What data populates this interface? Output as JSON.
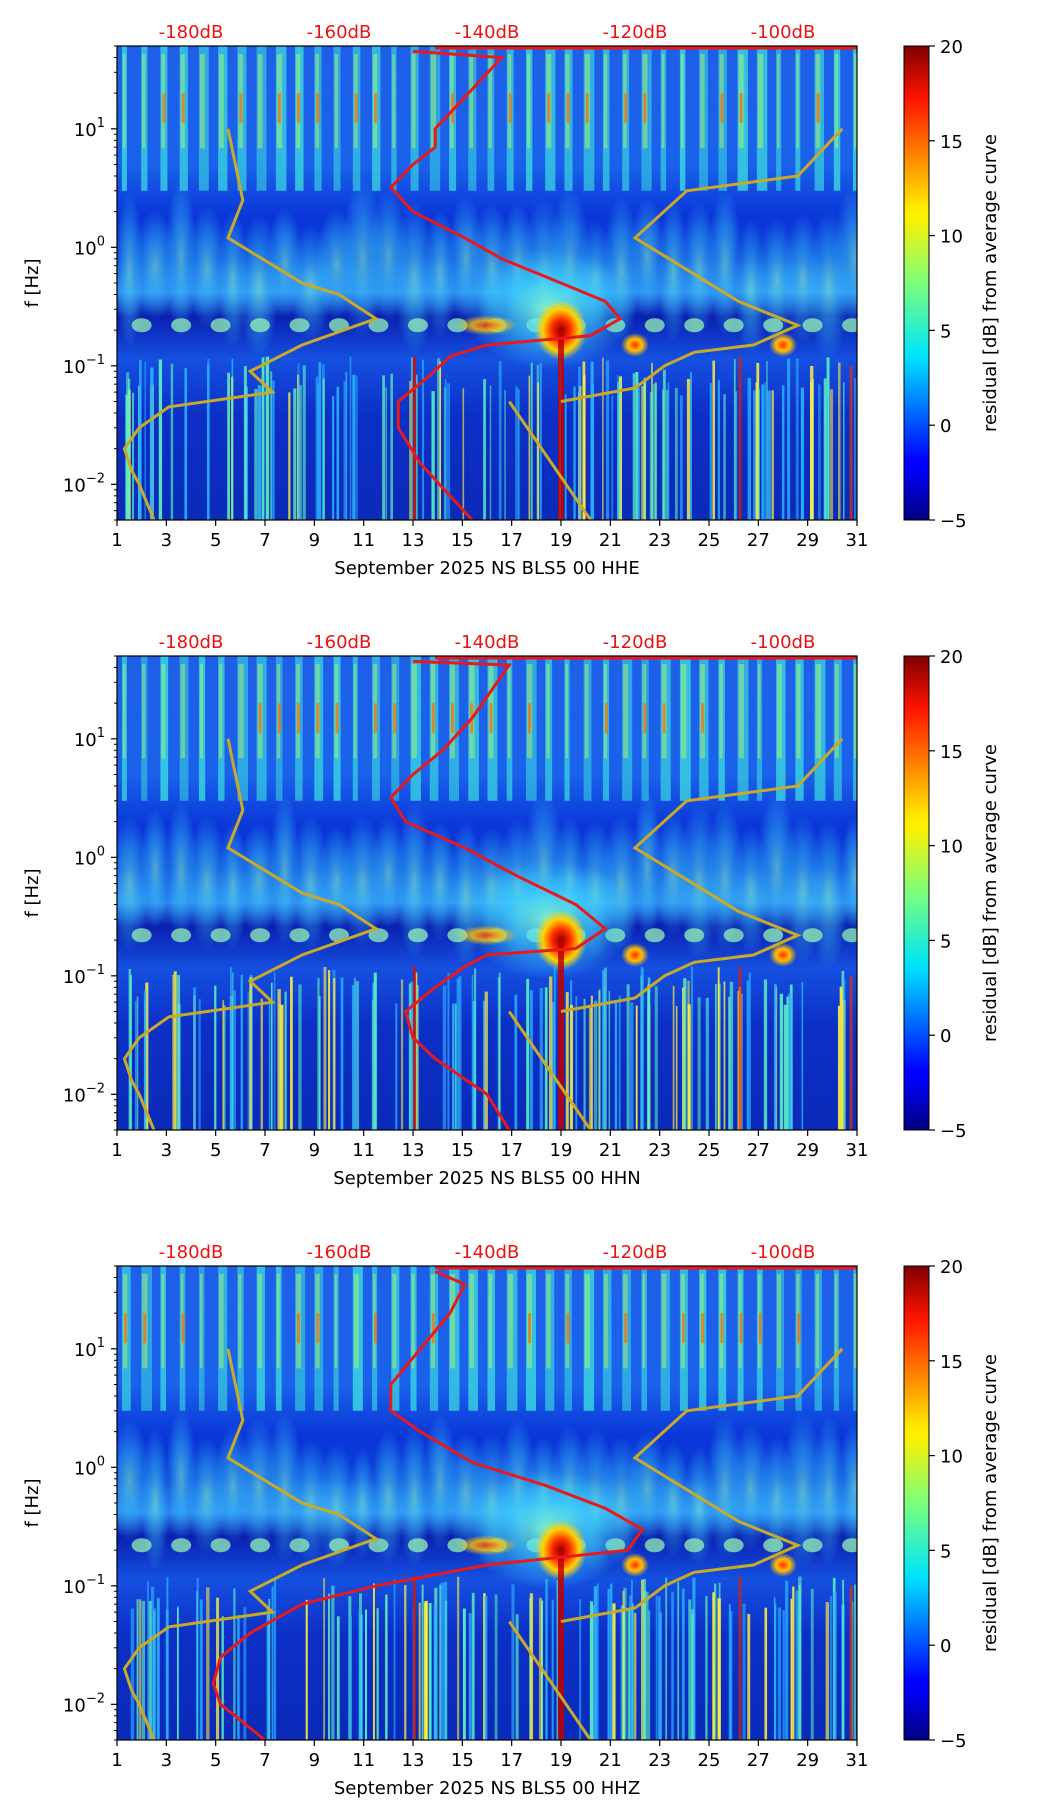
{
  "colors": {
    "red_curve": "#e8191c",
    "mustard_curve": "#c9a92a",
    "db_labels": "#ee1111",
    "axis": "#000000"
  },
  "colorbar": {
    "label": "residual [dB] from average curve",
    "ticks": [
      "20",
      "15",
      "10",
      "5",
      "0",
      "−5"
    ],
    "range": [
      -5,
      20
    ],
    "colormap": "jet"
  },
  "chart_data": [
    {
      "type": "heatmap",
      "title": "",
      "xlabel": "September 2025 NS BLS5 00 HHE",
      "ylabel": "f [Hz]",
      "x_ticks": [
        "1",
        "3",
        "5",
        "7",
        "9",
        "11",
        "13",
        "15",
        "17",
        "19",
        "21",
        "23",
        "25",
        "27",
        "29",
        "31"
      ],
      "y_ticks": [
        {
          "exp": "1"
        },
        {
          "exp": "0"
        },
        {
          "exp": "−1"
        },
        {
          "exp": "−2"
        }
      ],
      "y_base": "10",
      "db_labels": [
        "-180dB",
        "-160dB",
        "-140dB",
        "-120dB",
        "-100dB"
      ],
      "xlim": [
        1,
        31
      ],
      "ylim_hz": [
        0.005,
        50
      ],
      "db_range": [
        -190,
        -90
      ],
      "red_curve": [
        [
          -150,
          45
        ],
        [
          -138,
          40
        ],
        [
          -147,
          10
        ],
        [
          -147,
          7
        ],
        [
          -150,
          5
        ],
        [
          -153,
          3.2
        ],
        [
          -150,
          2
        ],
        [
          -143,
          1.2
        ],
        [
          -138,
          0.8
        ],
        [
          -130,
          0.5
        ],
        [
          -124,
          0.35
        ],
        [
          -122,
          0.25
        ],
        [
          -126,
          0.18
        ],
        [
          -140,
          0.15
        ],
        [
          -145,
          0.12
        ],
        [
          -148,
          0.08
        ],
        [
          -152,
          0.05
        ],
        [
          -152,
          0.03
        ],
        [
          -149,
          0.015
        ],
        [
          -142,
          0.005
        ]
      ],
      "mustard_curve": [
        [
          -175,
          10
        ],
        [
          -173,
          2.5
        ],
        [
          -175,
          1.2
        ],
        [
          -165,
          0.5
        ],
        [
          -160,
          0.4
        ],
        [
          -155,
          0.25
        ],
        [
          -165,
          0.15
        ],
        [
          -172,
          0.09
        ],
        [
          -169,
          0.06
        ],
        [
          -183,
          0.045
        ],
        [
          -187,
          0.03
        ],
        [
          -189,
          0.02
        ],
        [
          -188,
          0.013
        ],
        [
          -187,
          0.01
        ],
        [
          -185,
          0.005
        ]
      ],
      "mustard_branch": [
        [
          -130,
          0.05
        ],
        [
          -120,
          0.065
        ],
        [
          -116,
          0.1
        ],
        [
          -112,
          0.13
        ],
        [
          -104,
          0.15
        ],
        [
          -98,
          0.22
        ],
        [
          -106,
          0.35
        ],
        [
          -120,
          1.2
        ],
        [
          -113,
          3
        ],
        [
          -98,
          4
        ],
        [
          -92,
          10
        ]
      ],
      "mustard_diag": [
        [
          -137,
          0.05
        ],
        [
          -126,
          0.005
        ]
      ],
      "events_days": [
        19,
        22,
        28
      ]
    },
    {
      "type": "heatmap",
      "title": "",
      "xlabel": "September 2025 NS BLS5 00 HHN",
      "ylabel": "f [Hz]",
      "x_ticks": [
        "1",
        "3",
        "5",
        "7",
        "9",
        "11",
        "13",
        "15",
        "17",
        "19",
        "21",
        "23",
        "25",
        "27",
        "29",
        "31"
      ],
      "y_ticks": [
        {
          "exp": "1"
        },
        {
          "exp": "0"
        },
        {
          "exp": "−1"
        },
        {
          "exp": "−2"
        }
      ],
      "y_base": "10",
      "db_labels": [
        "-180dB",
        "-160dB",
        "-140dB",
        "-120dB",
        "-100dB"
      ],
      "xlim": [
        1,
        31
      ],
      "ylim_hz": [
        0.005,
        50
      ],
      "db_range": [
        -190,
        -90
      ],
      "red_curve": [
        [
          -150,
          45
        ],
        [
          -137,
          42
        ],
        [
          -142,
          15
        ],
        [
          -146,
          8
        ],
        [
          -150,
          5
        ],
        [
          -153,
          3.2
        ],
        [
          -151,
          2
        ],
        [
          -143,
          1.2
        ],
        [
          -136,
          0.7
        ],
        [
          -128,
          0.4
        ],
        [
          -124,
          0.25
        ],
        [
          -128,
          0.17
        ],
        [
          -140,
          0.15
        ],
        [
          -143,
          0.12
        ],
        [
          -147,
          0.08
        ],
        [
          -151,
          0.05
        ],
        [
          -150,
          0.03
        ],
        [
          -147,
          0.02
        ],
        [
          -140,
          0.01
        ],
        [
          -137,
          0.005
        ]
      ],
      "mustard_curve": [
        [
          -175,
          10
        ],
        [
          -173,
          2.5
        ],
        [
          -175,
          1.2
        ],
        [
          -165,
          0.5
        ],
        [
          -160,
          0.4
        ],
        [
          -155,
          0.25
        ],
        [
          -165,
          0.15
        ],
        [
          -172,
          0.09
        ],
        [
          -169,
          0.06
        ],
        [
          -183,
          0.045
        ],
        [
          -187,
          0.03
        ],
        [
          -189,
          0.02
        ],
        [
          -188,
          0.013
        ],
        [
          -187,
          0.01
        ],
        [
          -185,
          0.005
        ]
      ],
      "mustard_branch": [
        [
          -130,
          0.05
        ],
        [
          -120,
          0.065
        ],
        [
          -116,
          0.1
        ],
        [
          -112,
          0.13
        ],
        [
          -104,
          0.15
        ],
        [
          -98,
          0.22
        ],
        [
          -106,
          0.35
        ],
        [
          -120,
          1.2
        ],
        [
          -113,
          3
        ],
        [
          -98,
          4
        ],
        [
          -92,
          10
        ]
      ],
      "mustard_diag": [
        [
          -137,
          0.05
        ],
        [
          -126,
          0.005
        ]
      ],
      "events_days": [
        19,
        22,
        28
      ]
    },
    {
      "type": "heatmap",
      "title": "",
      "xlabel": "September 2025 NS BLS5 00 HHZ",
      "ylabel": "f [Hz]",
      "x_ticks": [
        "1",
        "3",
        "5",
        "7",
        "9",
        "11",
        "13",
        "15",
        "17",
        "19",
        "21",
        "23",
        "25",
        "27",
        "29",
        "31"
      ],
      "y_ticks": [
        {
          "exp": "1"
        },
        {
          "exp": "0"
        },
        {
          "exp": "−1"
        },
        {
          "exp": "−2"
        }
      ],
      "y_base": "10",
      "db_labels": [
        "-180dB",
        "-160dB",
        "-140dB",
        "-120dB",
        "-100dB"
      ],
      "xlim": [
        1,
        31
      ],
      "ylim_hz": [
        0.005,
        50
      ],
      "db_range": [
        -190,
        -90
      ],
      "red_curve": [
        [
          -147,
          45
        ],
        [
          -143,
          35
        ],
        [
          -145,
          20
        ],
        [
          -149,
          10
        ],
        [
          -153,
          5
        ],
        [
          -153,
          3
        ],
        [
          -149,
          2
        ],
        [
          -142,
          1.1
        ],
        [
          -132,
          0.7
        ],
        [
          -124,
          0.45
        ],
        [
          -119,
          0.3
        ],
        [
          -121,
          0.2
        ],
        [
          -140,
          0.15
        ],
        [
          -155,
          0.1
        ],
        [
          -165,
          0.07
        ],
        [
          -172,
          0.04
        ],
        [
          -176,
          0.025
        ],
        [
          -177,
          0.015
        ],
        [
          -176,
          0.01
        ],
        [
          -170,
          0.005
        ]
      ],
      "mustard_curve": [
        [
          -175,
          10
        ],
        [
          -173,
          2.5
        ],
        [
          -175,
          1.2
        ],
        [
          -165,
          0.5
        ],
        [
          -160,
          0.4
        ],
        [
          -155,
          0.25
        ],
        [
          -165,
          0.15
        ],
        [
          -172,
          0.09
        ],
        [
          -169,
          0.06
        ],
        [
          -183,
          0.045
        ],
        [
          -187,
          0.03
        ],
        [
          -189,
          0.02
        ],
        [
          -188,
          0.013
        ],
        [
          -187,
          0.01
        ],
        [
          -185,
          0.005
        ]
      ],
      "mustard_branch": [
        [
          -130,
          0.05
        ],
        [
          -120,
          0.065
        ],
        [
          -116,
          0.1
        ],
        [
          -112,
          0.13
        ],
        [
          -104,
          0.15
        ],
        [
          -98,
          0.22
        ],
        [
          -106,
          0.35
        ],
        [
          -120,
          1.2
        ],
        [
          -113,
          3
        ],
        [
          -98,
          4
        ],
        [
          -92,
          10
        ]
      ],
      "mustard_diag": [
        [
          -137,
          0.05
        ],
        [
          -126,
          0.005
        ]
      ],
      "events_days": [
        19,
        22,
        28
      ]
    }
  ]
}
